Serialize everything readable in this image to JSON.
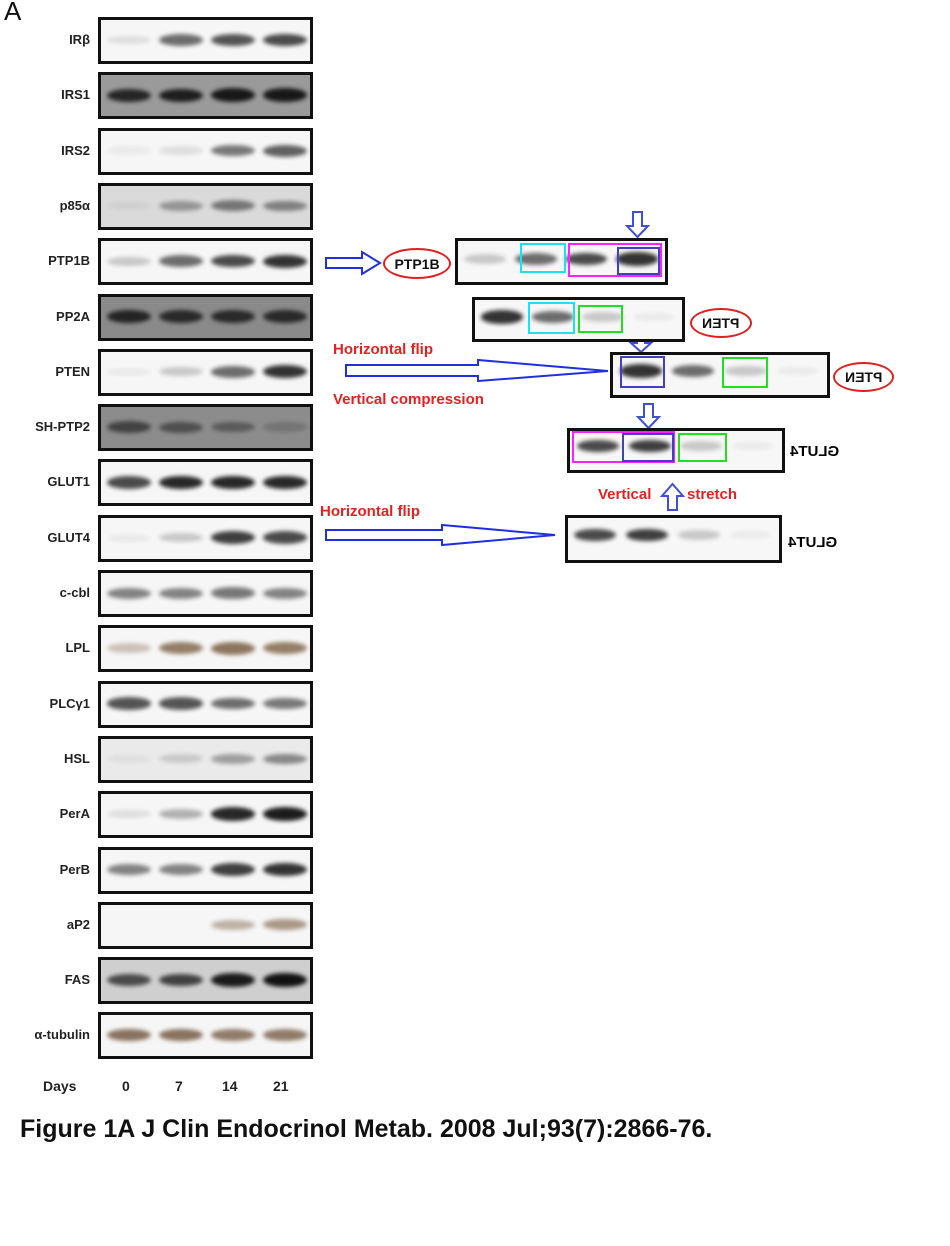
{
  "figure": {
    "panel_letter": "A",
    "caption": "Figure 1A J Clin Endocrinol Metab. 2008 Jul;93(7):2866-76.",
    "days_label": "Days",
    "days": [
      "0",
      "7",
      "14",
      "21"
    ],
    "blots": [
      {
        "label": "IRβ",
        "bands": [
          0.1,
          0.6,
          0.7,
          0.75
        ]
      },
      {
        "label": "IRS1",
        "bands": [
          0.85,
          0.9,
          0.95,
          0.95
        ],
        "bg": "#9a9a9a"
      },
      {
        "label": "IRS2",
        "bands": [
          0.05,
          0.1,
          0.55,
          0.65
        ]
      },
      {
        "label": "p85α",
        "bands": [
          0.05,
          0.35,
          0.5,
          0.45
        ],
        "bg": "#dadada"
      },
      {
        "label": "PTP1B",
        "bands": [
          0.2,
          0.6,
          0.75,
          0.85
        ]
      },
      {
        "label": "PP2A",
        "bands": [
          0.85,
          0.8,
          0.8,
          0.8
        ],
        "bg": "#8a8a8a"
      },
      {
        "label": "PTEN",
        "bands": [
          0.05,
          0.2,
          0.6,
          0.85
        ]
      },
      {
        "label": "SH-PTP2",
        "bands": [
          0.6,
          0.5,
          0.4,
          0.2
        ],
        "bg": "#8c8c8c"
      },
      {
        "label": "GLUT1",
        "bands": [
          0.75,
          0.9,
          0.9,
          0.9
        ]
      },
      {
        "label": "GLUT4",
        "bands": [
          0.05,
          0.2,
          0.8,
          0.75
        ]
      },
      {
        "label": "c-cbl",
        "bands": [
          0.5,
          0.5,
          0.55,
          0.5
        ]
      },
      {
        "label": "LPL",
        "bands": [
          0.3,
          0.7,
          0.75,
          0.7
        ],
        "color": "#6a4a2a"
      },
      {
        "label": "PLCγ1",
        "bands": [
          0.7,
          0.7,
          0.6,
          0.55
        ]
      },
      {
        "label": "HSL",
        "bands": [
          0.05,
          0.15,
          0.35,
          0.45
        ],
        "bg": "#eaeaea"
      },
      {
        "label": "PerA",
        "bands": [
          0.1,
          0.3,
          0.9,
          0.95
        ]
      },
      {
        "label": "PerB",
        "bands": [
          0.5,
          0.5,
          0.8,
          0.85
        ]
      },
      {
        "label": "aP2",
        "bands": [
          0,
          0,
          0.4,
          0.55
        ],
        "color": "#6a4a2a"
      },
      {
        "label": "FAS",
        "bands": [
          0.7,
          0.75,
          0.95,
          1.0
        ],
        "bg": "#cfcfcf"
      },
      {
        "label": "α-tubulin",
        "bands": [
          0.7,
          0.7,
          0.65,
          0.65
        ],
        "color": "#5a3a20"
      }
    ]
  },
  "annotations": {
    "ptp1b_label": "PTP1B",
    "pten_label": "PTEN",
    "glut4_label": "GLUT4",
    "horizontal_flip_1": "Horizontal flip",
    "vertical_compression": "Vertical compression",
    "vertical_stretch_left": "Vertical",
    "vertical_stretch_right": "stretch",
    "horizontal_flip_2": "Horizontal flip",
    "colors": {
      "arrow": "#2030e0",
      "cyan": "#20e0f0",
      "magenta": "#ff20ff",
      "blue_box": "#4040c0",
      "green": "#20e020",
      "red": "#e52020"
    }
  }
}
